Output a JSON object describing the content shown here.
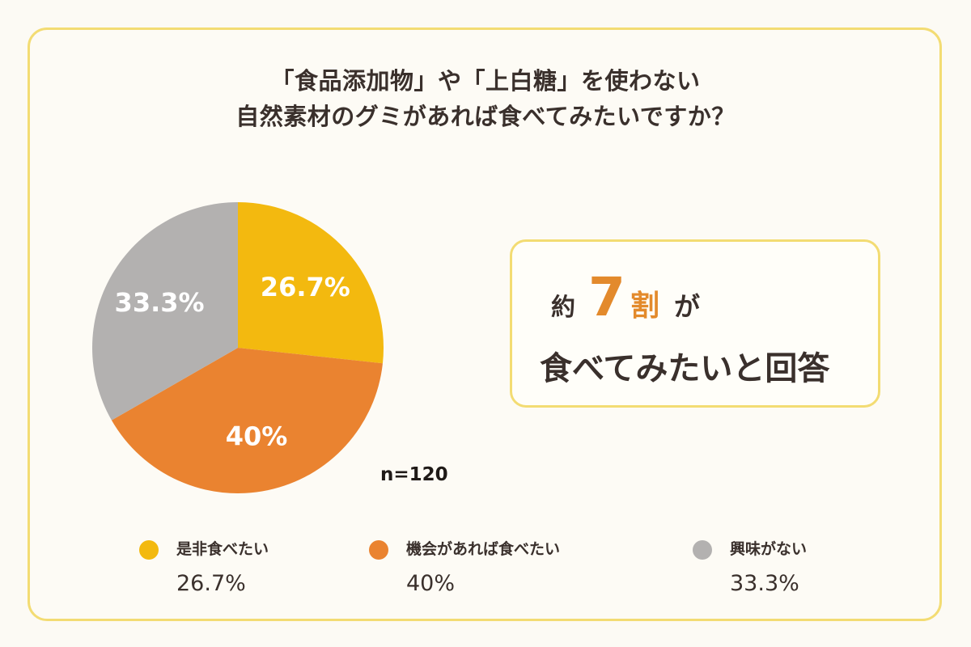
{
  "title": {
    "line1": "「食品添加物」や「上白糖」を使わない",
    "line2": "自然素材のグミがあれば食べてみたいですか？"
  },
  "chart_data": {
    "type": "pie",
    "categories": [
      "是非食べたい",
      "機会があれば食べたい",
      "興味がない"
    ],
    "values": [
      26.7,
      40,
      33.3
    ],
    "value_labels": [
      "26.7%",
      "40%",
      "33.3%"
    ],
    "colors": [
      "#f3b90f",
      "#ea8330",
      "#b3b1b0"
    ],
    "sample_size": "n=120"
  },
  "callout": {
    "prefix": "約",
    "number": "7",
    "unit": "割",
    "suffix": "が",
    "line2": "食べてみたいと回答"
  },
  "legend": [
    {
      "label": "是非食べたい",
      "value": "26.7%",
      "color": "#f3b90f"
    },
    {
      "label": "機会があれば食べたい",
      "value": "40%",
      "color": "#ea8330"
    },
    {
      "label": "興味がない",
      "value": "33.3%",
      "color": "#b3b1b0"
    }
  ],
  "colors": {
    "accent": "#e38a2c",
    "frame_border": "#f3dc73",
    "background": "#fcfaf4",
    "text": "#3a302c"
  }
}
